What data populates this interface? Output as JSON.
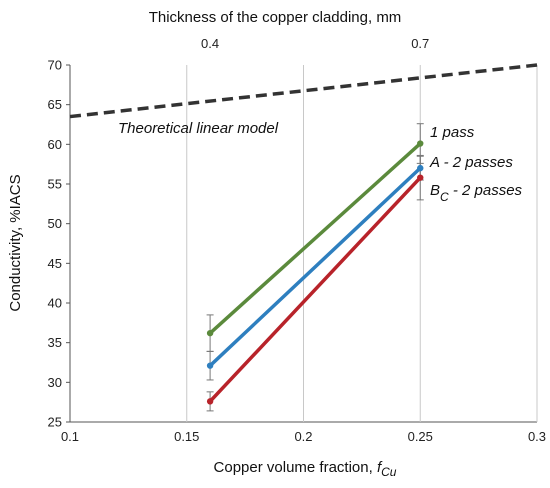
{
  "chart_data": {
    "type": "line",
    "top_axis": {
      "label": "Thickness of the copper cladding, mm",
      "ticks": [
        {
          "label": "0.4",
          "at_x": 0.16
        },
        {
          "label": "0.7",
          "at_x": 0.25
        }
      ]
    },
    "xlabel": "Copper volume fraction, ",
    "xlabel_symbol": "f",
    "xlabel_subscript": "Cu",
    "ylabel": "Conductivity, %IACS",
    "xlim": [
      0.1,
      0.3
    ],
    "ylim": [
      25,
      70
    ],
    "xticks": [
      0.1,
      0.15,
      0.2,
      0.25,
      0.3
    ],
    "xtick_labels": [
      "0.1",
      "0.15",
      "0.2",
      "0.25",
      "0.3"
    ],
    "yticks": [
      25,
      30,
      35,
      40,
      45,
      50,
      55,
      60,
      65,
      70
    ],
    "ytick_labels": [
      "25",
      "30",
      "35",
      "40",
      "45",
      "50",
      "55",
      "60",
      "65",
      "70"
    ],
    "grid": {
      "vertical": true,
      "horizontal": false
    },
    "series": [
      {
        "name": "1 pass",
        "color": "#5b8a3c",
        "x": [
          0.16,
          0.25
        ],
        "y": [
          36.2,
          60.1
        ],
        "error": [
          2.3,
          2.5
        ]
      },
      {
        "name": "A - 2 passes",
        "color": "#2e7fbf",
        "x": [
          0.16,
          0.25
        ],
        "y": [
          32.1,
          57.0
        ],
        "error": [
          1.8,
          1.5
        ]
      },
      {
        "name_main": "B",
        "name_sub": "C",
        "name_rest": " - 2 passes",
        "color": "#b8232a",
        "x": [
          0.16,
          0.25
        ],
        "y": [
          27.6,
          55.8
        ],
        "error": [
          1.2,
          2.8
        ]
      }
    ],
    "model_line": {
      "name": "Theoretical linear model",
      "color": "#333333",
      "style": "dashed",
      "x": [
        0.1,
        0.3
      ],
      "y": [
        63.5,
        70.0
      ]
    }
  }
}
